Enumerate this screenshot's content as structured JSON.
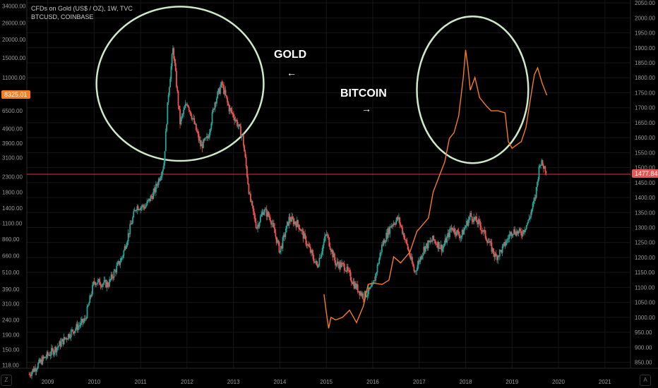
{
  "legend": {
    "line1": "CFDs on Gold (US$ / OZ), 1W, TVC",
    "line2": "BTCUSD, COINBASE"
  },
  "badges": {
    "left_value": "8325.01",
    "right_value": "1477.84"
  },
  "annotations": {
    "gold_label": "GOLD",
    "gold_arrow": "←",
    "bitcoin_label": "BITCOIN",
    "bitcoin_arrow": "→"
  },
  "corner_icons": {
    "left": "Z",
    "right": "A"
  },
  "colors": {
    "background": "#000000",
    "btc_line": "#f57c1f",
    "candle_up": "#26a69a",
    "candle_down": "#ef5350",
    "circle": "#cfe8c8",
    "price_line": "#e53935",
    "badge_left": "#f57c1f",
    "badge_right": "#e85656"
  },
  "chart_data": {
    "type": "line",
    "xlabel": "",
    "ylabel_left": "",
    "ylabel_right": "",
    "x_ticks": [
      "2009",
      "2010",
      "2011",
      "2012",
      "2013",
      "2014",
      "2015",
      "2016",
      "2017",
      "2018",
      "2019",
      "2020",
      "2021"
    ],
    "left_axis": {
      "scale": "log",
      "ticks": [
        "34000.00",
        "26000.00",
        "20000.00",
        "15000.00",
        "11000.00",
        "8325.01",
        "6500.00",
        "4900.00",
        "3900.00",
        "3100.00",
        "2300.00",
        "1800.00",
        "1400.00",
        "1100.00",
        "860.00",
        "660.00",
        "510.00",
        "390.00",
        "310.00",
        "240.00",
        "190.00",
        "150.00",
        "118.00"
      ]
    },
    "right_axis": {
      "scale": "linear",
      "ylim": [
        830,
        2055
      ],
      "ticks": [
        "2050.00",
        "2000.00",
        "1950.00",
        "1900.00",
        "1850.00",
        "1800.00",
        "1750.00",
        "1700.00",
        "1650.00",
        "1600.00",
        "1550.00",
        "1500.00",
        "1477.84",
        "1450.00",
        "1400.00",
        "1350.00",
        "1300.00",
        "1250.00",
        "1200.00",
        "1150.00",
        "1100.00",
        "1050.00",
        "1000.00",
        "950.00",
        "900.00",
        "850.00"
      ]
    },
    "current_price_line": 1477.84,
    "series": [
      {
        "name": "CFDs on Gold (US$ / OZ)",
        "style": "candles",
        "x": [
          2008.6,
          2008.9,
          2009.2,
          2009.5,
          2009.8,
          2010.0,
          2010.3,
          2010.6,
          2010.9,
          2011.1,
          2011.3,
          2011.5,
          2011.6,
          2011.7,
          2011.85,
          2012.0,
          2012.15,
          2012.3,
          2012.45,
          2012.6,
          2012.75,
          2012.9,
          2013.05,
          2013.2,
          2013.35,
          2013.5,
          2013.65,
          2013.8,
          2014.0,
          2014.2,
          2014.4,
          2014.6,
          2014.8,
          2015.0,
          2015.2,
          2015.4,
          2015.6,
          2015.8,
          2016.0,
          2016.2,
          2016.4,
          2016.55,
          2016.7,
          2016.9,
          2017.1,
          2017.3,
          2017.5,
          2017.7,
          2017.9,
          2018.1,
          2018.3,
          2018.5,
          2018.65,
          2018.8,
          2019.0,
          2019.2,
          2019.35,
          2019.5,
          2019.6,
          2019.7,
          2019.75
        ],
        "y": [
          810,
          860,
          900,
          950,
          990,
          1120,
          1110,
          1200,
          1370,
          1370,
          1420,
          1510,
          1750,
          1900,
          1650,
          1720,
          1650,
          1570,
          1600,
          1720,
          1780,
          1700,
          1660,
          1600,
          1400,
          1300,
          1360,
          1330,
          1220,
          1330,
          1310,
          1240,
          1170,
          1280,
          1180,
          1170,
          1110,
          1070,
          1100,
          1240,
          1310,
          1330,
          1260,
          1150,
          1230,
          1260,
          1230,
          1300,
          1270,
          1340,
          1310,
          1250,
          1200,
          1230,
          1290,
          1280,
          1320,
          1400,
          1520,
          1500,
          1490
        ]
      },
      {
        "name": "BTCUSD, COINBASE",
        "style": "line",
        "x": [
          2014.95,
          2015.0,
          2015.05,
          2015.1,
          2015.2,
          2015.35,
          2015.5,
          2015.65,
          2015.8,
          2015.9,
          2016.0,
          2016.2,
          2016.35,
          2016.45,
          2016.6,
          2016.8,
          2016.95,
          2017.1,
          2017.2,
          2017.3,
          2017.45,
          2017.55,
          2017.65,
          2017.75,
          2017.85,
          2017.95,
          2018.0,
          2018.05,
          2018.1,
          2018.2,
          2018.3,
          2018.45,
          2018.55,
          2018.7,
          2018.85,
          2018.92,
          2019.0,
          2019.1,
          2019.2,
          2019.3,
          2019.4,
          2019.48,
          2019.55,
          2019.65,
          2019.75
        ],
        "y": [
          360,
          270,
          210,
          250,
          240,
          250,
          280,
          230,
          300,
          420,
          430,
          420,
          450,
          650,
          590,
          700,
          970,
          1100,
          1200,
          1800,
          2400,
          2900,
          4200,
          4600,
          6000,
          11000,
          17000,
          13000,
          9000,
          11000,
          8000,
          7000,
          6500,
          6500,
          6300,
          4000,
          3600,
          3800,
          4000,
          5000,
          8000,
          11500,
          12800,
          10000,
          8300
        ]
      }
    ]
  }
}
